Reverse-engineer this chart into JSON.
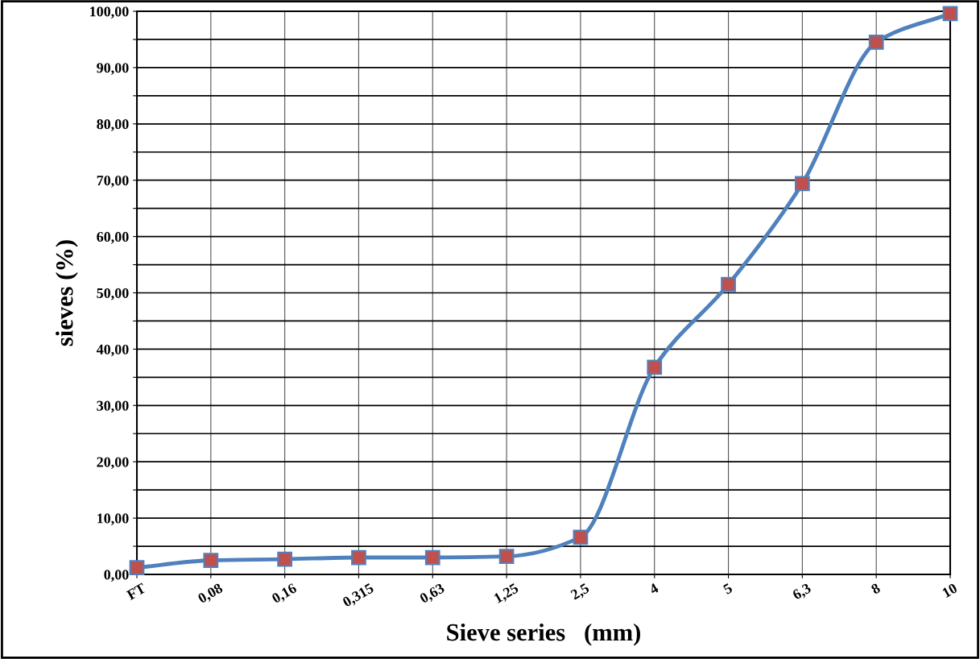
{
  "chart_data": {
    "type": "line",
    "xlabel": "Sieve series   (mm)",
    "ylabel": "sieves (%)",
    "categories": [
      "FT",
      "0,08",
      "0,16",
      "0,315",
      "0,63",
      "1,25",
      "2,5",
      "4",
      "5",
      "6,3",
      "8",
      "10"
    ],
    "series": [
      {
        "color": "#4f81bd",
        "colors": [
          "#c0504d",
          "#c0504d",
          "#c0504d",
          "#c0504d",
          "#c0504d",
          "#c0504d",
          "#c0504d",
          "#c0504d",
          "#c0504d",
          "#c0504d",
          "#c0504d",
          "#c0504d"
        ],
        "values": [
          1.2,
          2.5,
          2.7,
          3.0,
          3.0,
          3.2,
          6.6,
          36.8,
          51.5,
          69.4,
          94.5,
          99.6
        ]
      }
    ],
    "marker": "square",
    "ylim": [
      0,
      100
    ],
    "yticks": [
      {
        "value": 0,
        "label": "0,00"
      },
      {
        "value": 5,
        "label": null
      },
      {
        "value": 10,
        "label": "10,00"
      },
      {
        "value": 15,
        "label": null
      },
      {
        "value": 20,
        "label": "20,00"
      },
      {
        "value": 25,
        "label": null
      },
      {
        "value": 30,
        "label": "30,00"
      },
      {
        "value": 35,
        "label": null
      },
      {
        "value": 40,
        "label": "40,00"
      },
      {
        "value": 45,
        "label": null
      },
      {
        "value": 50,
        "label": "50,00"
      },
      {
        "value": 55,
        "label": null
      },
      {
        "value": 60,
        "label": "60,00"
      },
      {
        "value": 65,
        "label": null
      },
      {
        "value": 70,
        "label": "70,00"
      },
      {
        "value": 75,
        "label": null
      },
      {
        "value": 80,
        "label": "80,00"
      },
      {
        "value": 85,
        "label": null
      },
      {
        "value": 90,
        "label": "90,00"
      },
      {
        "value": 95,
        "label": null
      },
      {
        "value": 100,
        "label": "100,00"
      }
    ],
    "grid": true
  }
}
